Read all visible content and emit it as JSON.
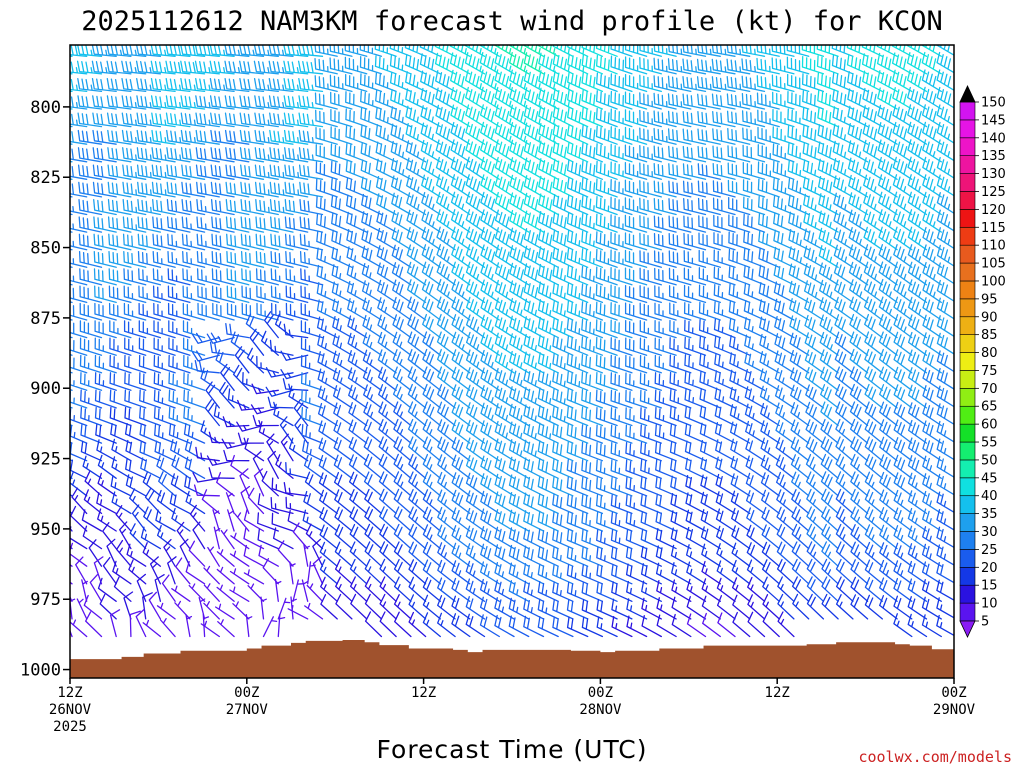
{
  "chart_data": {
    "type": "wind_barb_time_height",
    "title": "2025112612 NAM3KM forecast wind profile (kt) for KCON",
    "xlabel": "Forecast Time (UTC)",
    "ylabel": "",
    "x_range_hours": [
      0,
      60
    ],
    "y_range_hpa": [
      1003,
      778
    ],
    "x_ticks": [
      {
        "hour": 0,
        "lines": [
          "12Z",
          "26NOV",
          "2025"
        ]
      },
      {
        "hour": 12,
        "lines": [
          "00Z",
          "27NOV"
        ]
      },
      {
        "hour": 24,
        "lines": [
          "12Z"
        ]
      },
      {
        "hour": 36,
        "lines": [
          "00Z",
          "28NOV"
        ]
      },
      {
        "hour": 48,
        "lines": [
          "12Z"
        ]
      },
      {
        "hour": 60,
        "lines": [
          "00Z",
          "29NOV"
        ]
      }
    ],
    "y_ticks": [
      800,
      825,
      850,
      875,
      900,
      925,
      950,
      975,
      1000
    ],
    "colorbar": {
      "unit": "kt",
      "levels": [
        5,
        10,
        15,
        20,
        25,
        30,
        35,
        40,
        45,
        50,
        55,
        60,
        65,
        70,
        75,
        80,
        85,
        90,
        95,
        100,
        105,
        110,
        115,
        120,
        125,
        130,
        135,
        140,
        145,
        150
      ],
      "colors": [
        "#8a1cf5",
        "#5a14f0",
        "#2a12e0",
        "#1438e6",
        "#1a5cee",
        "#1e80f0",
        "#1ea0ee",
        "#14c0ee",
        "#10e0e0",
        "#14eeb0",
        "#14ee70",
        "#14e028",
        "#50ee14",
        "#90ee14",
        "#c8ee14",
        "#eeee14",
        "#eed014",
        "#eeb014",
        "#ee9814",
        "#ee8214",
        "#e8701e",
        "#e85a1e",
        "#ee3c14",
        "#ee1414",
        "#ee1446",
        "#ee1478",
        "#ee14a0",
        "#ee14c8",
        "#e614e6",
        "#d214f0"
      ]
    },
    "terrain_surface_hpa": [
      {
        "hour": 0,
        "p": 996.3
      },
      {
        "hour": 3.5,
        "p": 995.5
      },
      {
        "hour": 5,
        "p": 994.3
      },
      {
        "hour": 7.5,
        "p": 993.3
      },
      {
        "hour": 12,
        "p": 992.5
      },
      {
        "hour": 13,
        "p": 991.5
      },
      {
        "hour": 15,
        "p": 990.5
      },
      {
        "hour": 16,
        "p": 989.8
      },
      {
        "hour": 18.5,
        "p": 989.5
      },
      {
        "hour": 20,
        "p": 990.3
      },
      {
        "hour": 21,
        "p": 991.3
      },
      {
        "hour": 23,
        "p": 992.5
      },
      {
        "hour": 26,
        "p": 993.0
      },
      {
        "hour": 27,
        "p": 993.8
      },
      {
        "hour": 28,
        "p": 993.0
      },
      {
        "hour": 34,
        "p": 993.3
      },
      {
        "hour": 36,
        "p": 993.8
      },
      {
        "hour": 37,
        "p": 993.3
      },
      {
        "hour": 40,
        "p": 992.5
      },
      {
        "hour": 43,
        "p": 991.5
      },
      {
        "hour": 50,
        "p": 991.0
      },
      {
        "hour": 52,
        "p": 990.3
      },
      {
        "hour": 56,
        "p": 991.0
      },
      {
        "hour": 57,
        "p": 991.5
      },
      {
        "hour": 58.5,
        "p": 992.8
      },
      {
        "hour": 60,
        "p": 994.3
      }
    ],
    "barb_grid": {
      "time_step_hours": 1,
      "pressure_top_hpa": 782,
      "pressure_step_hpa": 6.25,
      "pattern_note": "Westerly to northwesterly flow aloft 25-45 kt; weaker (5-15 kt) and more variable near the surface before hour 18; shift to stronger northwesterly 20-40 kt after hour 18."
    },
    "credit": "coolwx.com/models"
  }
}
